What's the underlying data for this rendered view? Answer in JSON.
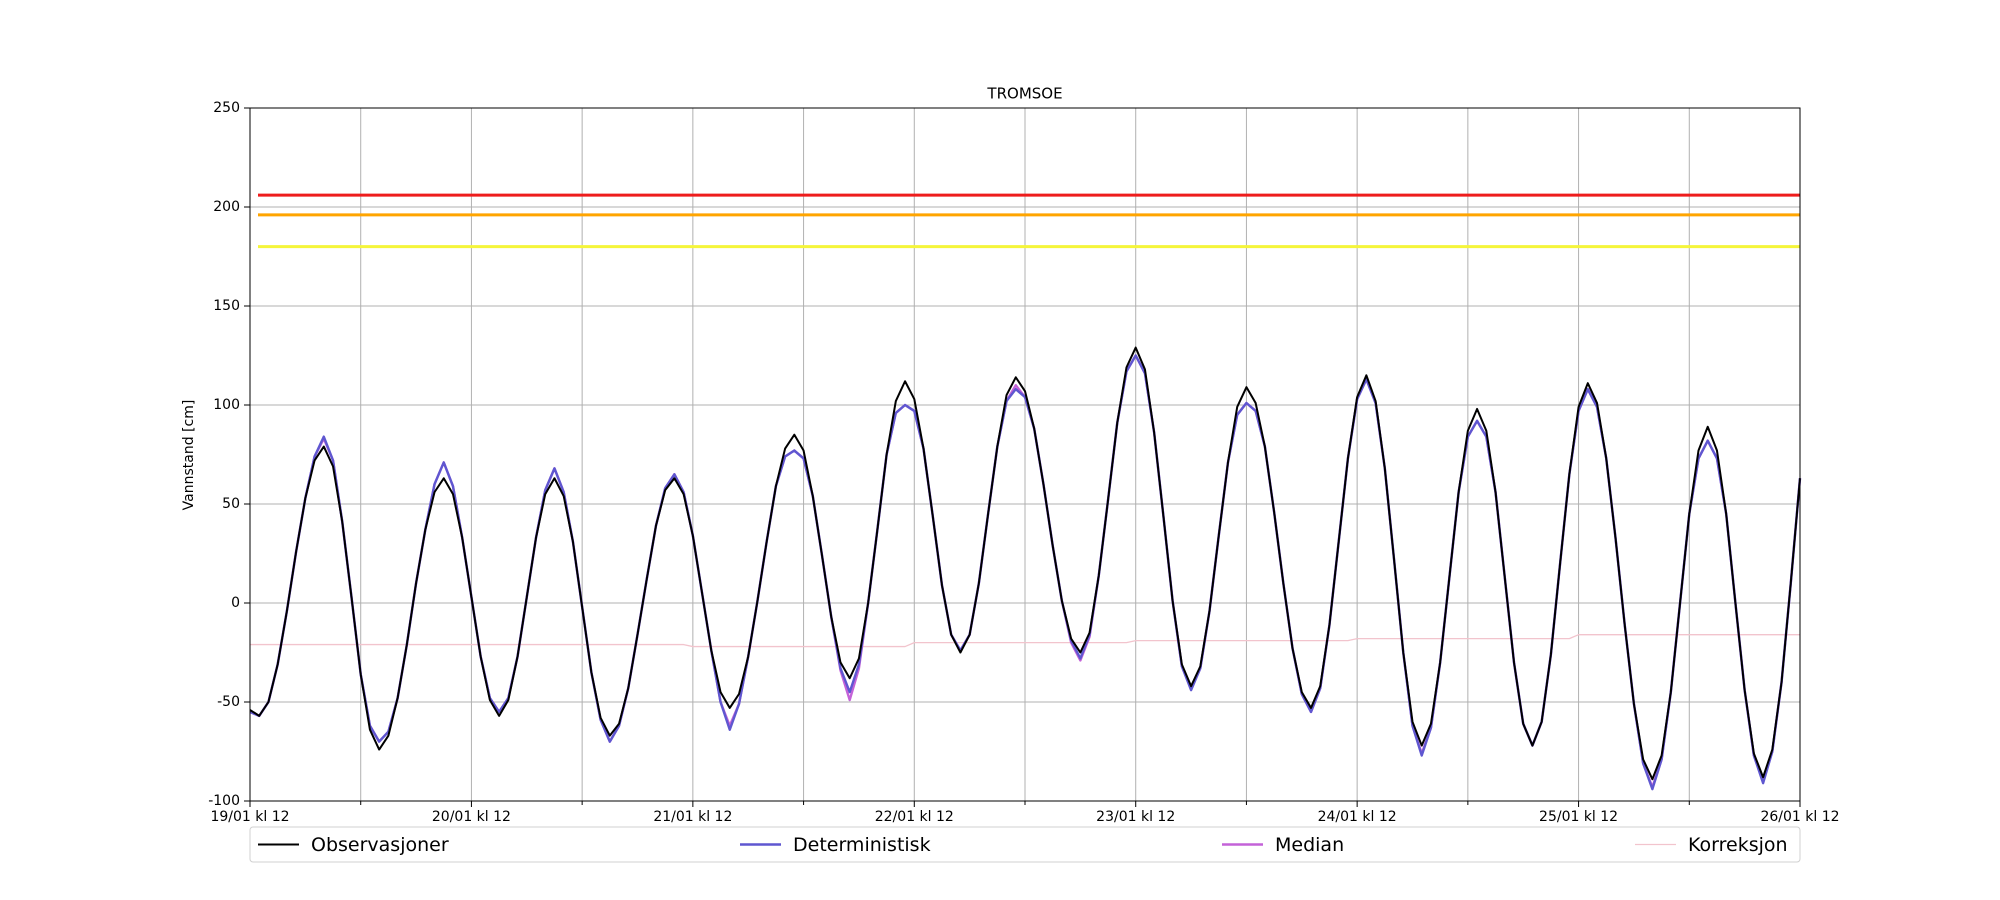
{
  "chart_data": {
    "type": "line",
    "title": "TROMSOE",
    "y_label": "Vannstand [cm]",
    "xlim": [
      0,
      168
    ],
    "ylim": [
      -100,
      250
    ],
    "xticks": [
      {
        "value": 0,
        "label": "19/01 kl 12"
      },
      {
        "value": 24,
        "label": "20/01 kl 12"
      },
      {
        "value": 48,
        "label": "21/01 kl 12"
      },
      {
        "value": 72,
        "label": "22/01 kl 12"
      },
      {
        "value": 96,
        "label": "23/01 kl 12"
      },
      {
        "value": 120,
        "label": "24/01 kl 12"
      },
      {
        "value": 144,
        "label": "25/01 kl 12"
      },
      {
        "value": 168,
        "label": "26/01 kl 12"
      }
    ],
    "xminorticks": [
      12,
      36,
      60,
      84,
      108,
      132,
      156
    ],
    "yticks": [
      -100,
      -50,
      0,
      50,
      100,
      150,
      200,
      250
    ],
    "grid": true,
    "legend": "bottom",
    "reference_lines": [
      {
        "value": 206,
        "color": "#ee1c1c"
      },
      {
        "value": 196,
        "color": "#ffa500"
      },
      {
        "value": 180,
        "color": "#f5f53a"
      }
    ],
    "x": [
      0,
      1,
      2,
      3,
      4,
      5,
      6,
      7,
      8,
      9,
      10,
      11,
      12,
      13,
      14,
      15,
      16,
      17,
      18,
      19,
      20,
      21,
      22,
      23,
      24,
      25,
      26,
      27,
      28,
      29,
      30,
      31,
      32,
      33,
      34,
      35,
      36,
      37,
      38,
      39,
      40,
      41,
      42,
      43,
      44,
      45,
      46,
      47,
      48,
      49,
      50,
      51,
      52,
      53,
      54,
      55,
      56,
      57,
      58,
      59,
      60,
      61,
      62,
      63,
      64,
      65,
      66,
      67,
      68,
      69,
      70,
      71,
      72,
      73,
      74,
      75,
      76,
      77,
      78,
      79,
      80,
      81,
      82,
      83,
      84,
      85,
      86,
      87,
      88,
      89,
      90,
      91,
      92,
      93,
      94,
      95,
      96,
      97,
      98,
      99,
      100,
      101,
      102,
      103,
      104,
      105,
      106,
      107,
      108,
      109,
      110,
      111,
      112,
      113,
      114,
      115,
      116,
      117,
      118,
      119,
      120,
      121,
      122,
      123,
      124,
      125,
      126,
      127,
      128,
      129,
      130,
      131,
      132,
      133,
      134,
      135,
      136,
      137,
      138,
      139,
      140,
      141,
      142,
      143,
      144,
      145,
      146,
      147,
      148,
      149,
      150,
      151,
      152,
      153,
      154,
      155,
      156,
      157,
      158,
      159,
      160,
      161,
      162,
      163,
      164,
      165,
      166,
      167,
      168
    ],
    "series": [
      {
        "name": "Observasjoner",
        "color": "#000000",
        "width": 2,
        "values": [
          -54,
          -57,
          -50,
          -31,
          -4,
          26,
          53,
          72,
          79,
          69,
          41,
          3,
          -36,
          -64,
          -74,
          -67,
          -48,
          -21,
          10,
          37,
          56,
          63,
          55,
          33,
          3,
          -27,
          -49,
          -57,
          -49,
          -27,
          3,
          33,
          55,
          63,
          54,
          31,
          -2,
          -35,
          -58,
          -67,
          -61,
          -43,
          -16,
          12,
          39,
          57,
          63,
          55,
          34,
          5,
          -24,
          -45,
          -53,
          -46,
          -27,
          1,
          31,
          59,
          78,
          85,
          77,
          54,
          24,
          -7,
          -30,
          -38,
          -28,
          0,
          37,
          75,
          102,
          112,
          103,
          78,
          44,
          9,
          -16,
          -25,
          -16,
          10,
          45,
          79,
          105,
          114,
          107,
          88,
          60,
          29,
          1,
          -18,
          -25,
          -15,
          14,
          52,
          91,
          119,
          129,
          118,
          86,
          44,
          1,
          -31,
          -42,
          -32,
          -4,
          34,
          71,
          99,
          109,
          101,
          79,
          46,
          10,
          -23,
          -45,
          -53,
          -42,
          -11,
          31,
          73,
          104,
          115,
          102,
          68,
          22,
          -25,
          -60,
          -72,
          -61,
          -30,
          13,
          56,
          87,
          98,
          87,
          56,
          13,
          -30,
          -61,
          -72,
          -60,
          -26,
          20,
          65,
          99,
          111,
          101,
          73,
          33,
          -11,
          -51,
          -79,
          -89,
          -77,
          -45,
          0,
          45,
          77,
          89,
          77,
          45,
          0,
          -44,
          -76,
          -88,
          -74,
          -40,
          10,
          63
        ]
      },
      {
        "name": "Deterministisk",
        "color": "#5f57d0",
        "width": 2.4,
        "values": [
          -55,
          -57,
          -50,
          -31,
          -4,
          26,
          53,
          74,
          84,
          72,
          41,
          3,
          -36,
          -62,
          -70,
          -65,
          -48,
          -21,
          10,
          37,
          60,
          71,
          59,
          33,
          3,
          -27,
          -48,
          -55,
          -48,
          -27,
          3,
          33,
          57,
          68,
          56,
          31,
          -2,
          -35,
          -59,
          -70,
          -62,
          -43,
          -16,
          12,
          39,
          58,
          65,
          56,
          34,
          5,
          -24,
          -50,
          -64,
          -51,
          -27,
          1,
          31,
          59,
          74,
          77,
          73,
          54,
          24,
          -7,
          -33,
          -45,
          -31,
          0,
          37,
          75,
          96,
          100,
          97,
          78,
          44,
          9,
          -16,
          -24,
          -16,
          10,
          45,
          79,
          102,
          108,
          104,
          88,
          60,
          29,
          1,
          -19,
          -28,
          -16,
          14,
          52,
          91,
          117,
          125,
          116,
          86,
          44,
          1,
          -32,
          -44,
          -33,
          -4,
          34,
          71,
          95,
          101,
          97,
          79,
          46,
          10,
          -23,
          -46,
          -55,
          -43,
          -11,
          31,
          73,
          103,
          113,
          101,
          68,
          22,
          -25,
          -62,
          -77,
          -63,
          -30,
          13,
          56,
          84,
          92,
          84,
          56,
          13,
          -30,
          -61,
          -72,
          -60,
          -26,
          20,
          65,
          97,
          108,
          99,
          73,
          33,
          -11,
          -51,
          -81,
          -94,
          -79,
          -45,
          0,
          45,
          73,
          82,
          73,
          45,
          0,
          -44,
          -77,
          -91,
          -75,
          -40,
          10,
          63
        ]
      },
      {
        "name": "Median",
        "color": "#c462d8",
        "width": 2.4,
        "values": [
          -55,
          -57,
          -50,
          -31,
          -4,
          26,
          53,
          74,
          83,
          72,
          41,
          3,
          -36,
          -62,
          -70,
          -65,
          -48,
          -21,
          10,
          37,
          60,
          71,
          59,
          33,
          3,
          -27,
          -48,
          -55,
          -48,
          -27,
          3,
          33,
          57,
          68,
          56,
          31,
          -2,
          -35,
          -59,
          -70,
          -62,
          -43,
          -16,
          12,
          39,
          58,
          65,
          56,
          34,
          5,
          -24,
          -50,
          -62,
          -51,
          -27,
          1,
          31,
          59,
          74,
          77,
          73,
          54,
          24,
          -7,
          -34,
          -49,
          -33,
          0,
          37,
          75,
          96,
          100,
          97,
          78,
          44,
          9,
          -16,
          -24,
          -16,
          10,
          45,
          79,
          102,
          110,
          104,
          88,
          60,
          29,
          1,
          -20,
          -29,
          -17,
          14,
          52,
          91,
          117,
          125,
          116,
          86,
          44,
          1,
          -32,
          -43,
          -33,
          -4,
          34,
          71,
          95,
          101,
          97,
          79,
          46,
          10,
          -23,
          -46,
          -55,
          -43,
          -11,
          31,
          73,
          103,
          113,
          101,
          68,
          22,
          -25,
          -62,
          -76,
          -63,
          -30,
          13,
          56,
          84,
          92,
          84,
          56,
          13,
          -30,
          -61,
          -72,
          -60,
          -26,
          20,
          65,
          97,
          108,
          99,
          73,
          33,
          -11,
          -51,
          -81,
          -93,
          -79,
          -45,
          0,
          45,
          73,
          82,
          73,
          45,
          0,
          -44,
          -77,
          -90,
          -75,
          -40,
          10,
          63
        ]
      },
      {
        "name": "Korreksjon",
        "color": "#f2c4cd",
        "width": 1.3,
        "x": [
          0,
          47,
          48,
          71,
          72,
          95,
          96,
          119,
          120,
          143,
          144,
          168
        ],
        "values": [
          -21,
          -21,
          -22,
          -22,
          -20,
          -20,
          -19,
          -19,
          -18,
          -18,
          -16,
          -16
        ]
      }
    ]
  }
}
